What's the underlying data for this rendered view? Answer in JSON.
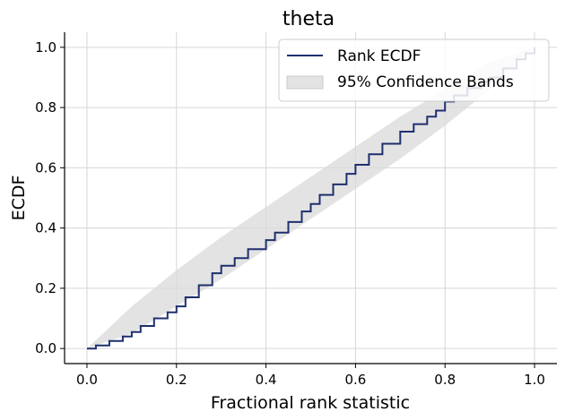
{
  "chart_data": {
    "type": "line",
    "title": "theta",
    "xlabel": "Fractional rank statistic",
    "ylabel": "ECDF",
    "xlim": [
      -0.05,
      1.05
    ],
    "ylim": [
      -0.05,
      1.05
    ],
    "xticks": [
      0.0,
      0.2,
      0.4,
      0.6,
      0.8,
      1.0
    ],
    "yticks": [
      0.0,
      0.2,
      0.4,
      0.6,
      0.8,
      1.0
    ],
    "xtick_labels": [
      "0.0",
      "0.2",
      "0.4",
      "0.6",
      "0.8",
      "1.0"
    ],
    "ytick_labels": [
      "0.0",
      "0.2",
      "0.4",
      "0.6",
      "0.8",
      "1.0"
    ],
    "grid": true,
    "legend_position": "top-right",
    "series": [
      {
        "name": "Rank ECDF",
        "color": "#1f2f6e",
        "x": [
          0.0,
          0.02,
          0.05,
          0.08,
          0.1,
          0.12,
          0.15,
          0.18,
          0.2,
          0.22,
          0.25,
          0.28,
          0.3,
          0.33,
          0.36,
          0.4,
          0.42,
          0.45,
          0.48,
          0.5,
          0.52,
          0.55,
          0.58,
          0.6,
          0.63,
          0.66,
          0.7,
          0.73,
          0.76,
          0.78,
          0.8,
          0.82,
          0.85,
          0.88,
          0.9,
          0.93,
          0.96,
          0.98,
          1.0
        ],
        "y": [
          0.0,
          0.01,
          0.025,
          0.04,
          0.055,
          0.075,
          0.1,
          0.12,
          0.14,
          0.17,
          0.21,
          0.25,
          0.275,
          0.3,
          0.33,
          0.36,
          0.385,
          0.42,
          0.455,
          0.48,
          0.51,
          0.545,
          0.58,
          0.61,
          0.645,
          0.68,
          0.72,
          0.745,
          0.77,
          0.79,
          0.82,
          0.84,
          0.865,
          0.885,
          0.9,
          0.93,
          0.96,
          0.98,
          1.0
        ]
      }
    ],
    "band": {
      "name": "95% Confidence Bands",
      "color": "#d9d9d9",
      "x": [
        0.0,
        0.1,
        0.2,
        0.3,
        0.4,
        0.5,
        0.6,
        0.7,
        0.8,
        0.9,
        1.0
      ],
      "lower": [
        0.0,
        0.05,
        0.14,
        0.23,
        0.33,
        0.43,
        0.53,
        0.63,
        0.74,
        0.86,
        1.0
      ],
      "upper": [
        0.0,
        0.14,
        0.26,
        0.37,
        0.47,
        0.57,
        0.67,
        0.77,
        0.86,
        0.95,
        1.0
      ]
    }
  }
}
